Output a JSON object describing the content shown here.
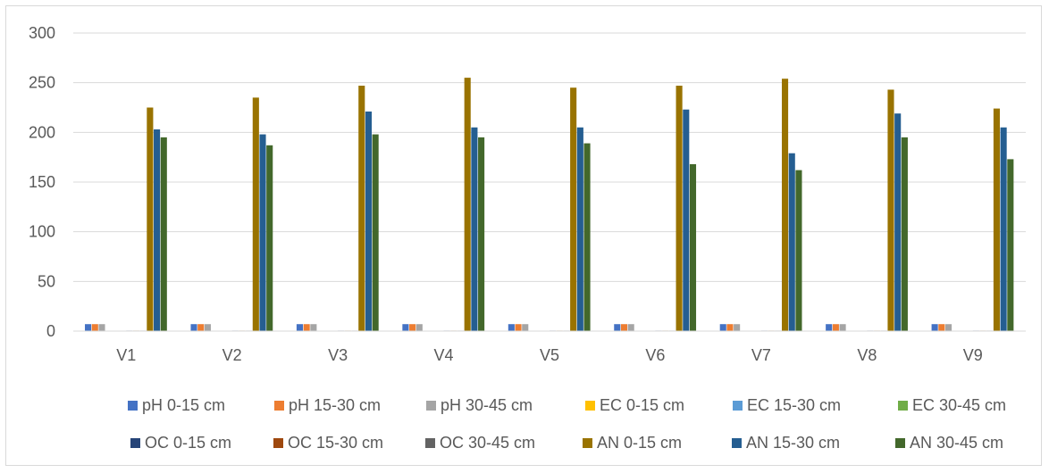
{
  "chart_data": {
    "type": "bar",
    "title": "",
    "xlabel": "",
    "ylabel": "",
    "ylim": [
      0,
      300
    ],
    "yticks": [
      0,
      50,
      100,
      150,
      200,
      250,
      300
    ],
    "grid": true,
    "legend_position": "bottom",
    "categories": [
      "V1",
      "V2",
      "V3",
      "V4",
      "V5",
      "V6",
      "V7",
      "V8",
      "V9"
    ],
    "series": [
      {
        "name": "pH 0-15 cm",
        "color": "#4472C4",
        "values": [
          7,
          7,
          7,
          7,
          7,
          7,
          7,
          7,
          7
        ]
      },
      {
        "name": "pH 15-30 cm",
        "color": "#ED7D31",
        "values": [
          7,
          7,
          7,
          7,
          7,
          7,
          7,
          7,
          7
        ]
      },
      {
        "name": "pH 30-45 cm",
        "color": "#A5A5A5",
        "values": [
          7,
          7,
          7,
          7,
          7,
          7,
          7,
          7,
          7
        ]
      },
      {
        "name": "EC 0-15 cm",
        "color": "#FFC000",
        "values": [
          0.3,
          0.3,
          0.3,
          0.3,
          0.3,
          0.3,
          0.3,
          0.3,
          0.3
        ]
      },
      {
        "name": "EC 15-30 cm",
        "color": "#5B9BD5",
        "values": [
          0.3,
          0.3,
          0.3,
          0.3,
          0.3,
          0.3,
          0.3,
          0.3,
          0.3
        ]
      },
      {
        "name": "EC 30-45 cm",
        "color": "#70AD47",
        "values": [
          0.3,
          0.3,
          0.3,
          0.3,
          0.3,
          0.3,
          0.3,
          0.3,
          0.3
        ]
      },
      {
        "name": "OC 0-15 cm",
        "color": "#264478",
        "values": [
          0.5,
          0.5,
          0.5,
          0.5,
          0.5,
          0.5,
          0.5,
          0.5,
          0.5
        ]
      },
      {
        "name": "OC 15-30 cm",
        "color": "#9E480E",
        "values": [
          0.5,
          0.5,
          0.5,
          0.5,
          0.5,
          0.5,
          0.5,
          0.5,
          0.5
        ]
      },
      {
        "name": "OC 30-45 cm",
        "color": "#636363",
        "values": [
          0.5,
          0.5,
          0.5,
          0.5,
          0.5,
          0.5,
          0.5,
          0.5,
          0.5
        ]
      },
      {
        "name": "AN 0-15 cm",
        "color": "#997300",
        "values": [
          225,
          235,
          247,
          255,
          245,
          247,
          254,
          243,
          224
        ]
      },
      {
        "name": "AN 15-30 cm",
        "color": "#255E91",
        "values": [
          203,
          198,
          221,
          205,
          205,
          223,
          179,
          219,
          205
        ]
      },
      {
        "name": "AN 30-45 cm",
        "color": "#43682B",
        "values": [
          195,
          187,
          198,
          195,
          189,
          168,
          162,
          195,
          173
        ]
      }
    ]
  }
}
